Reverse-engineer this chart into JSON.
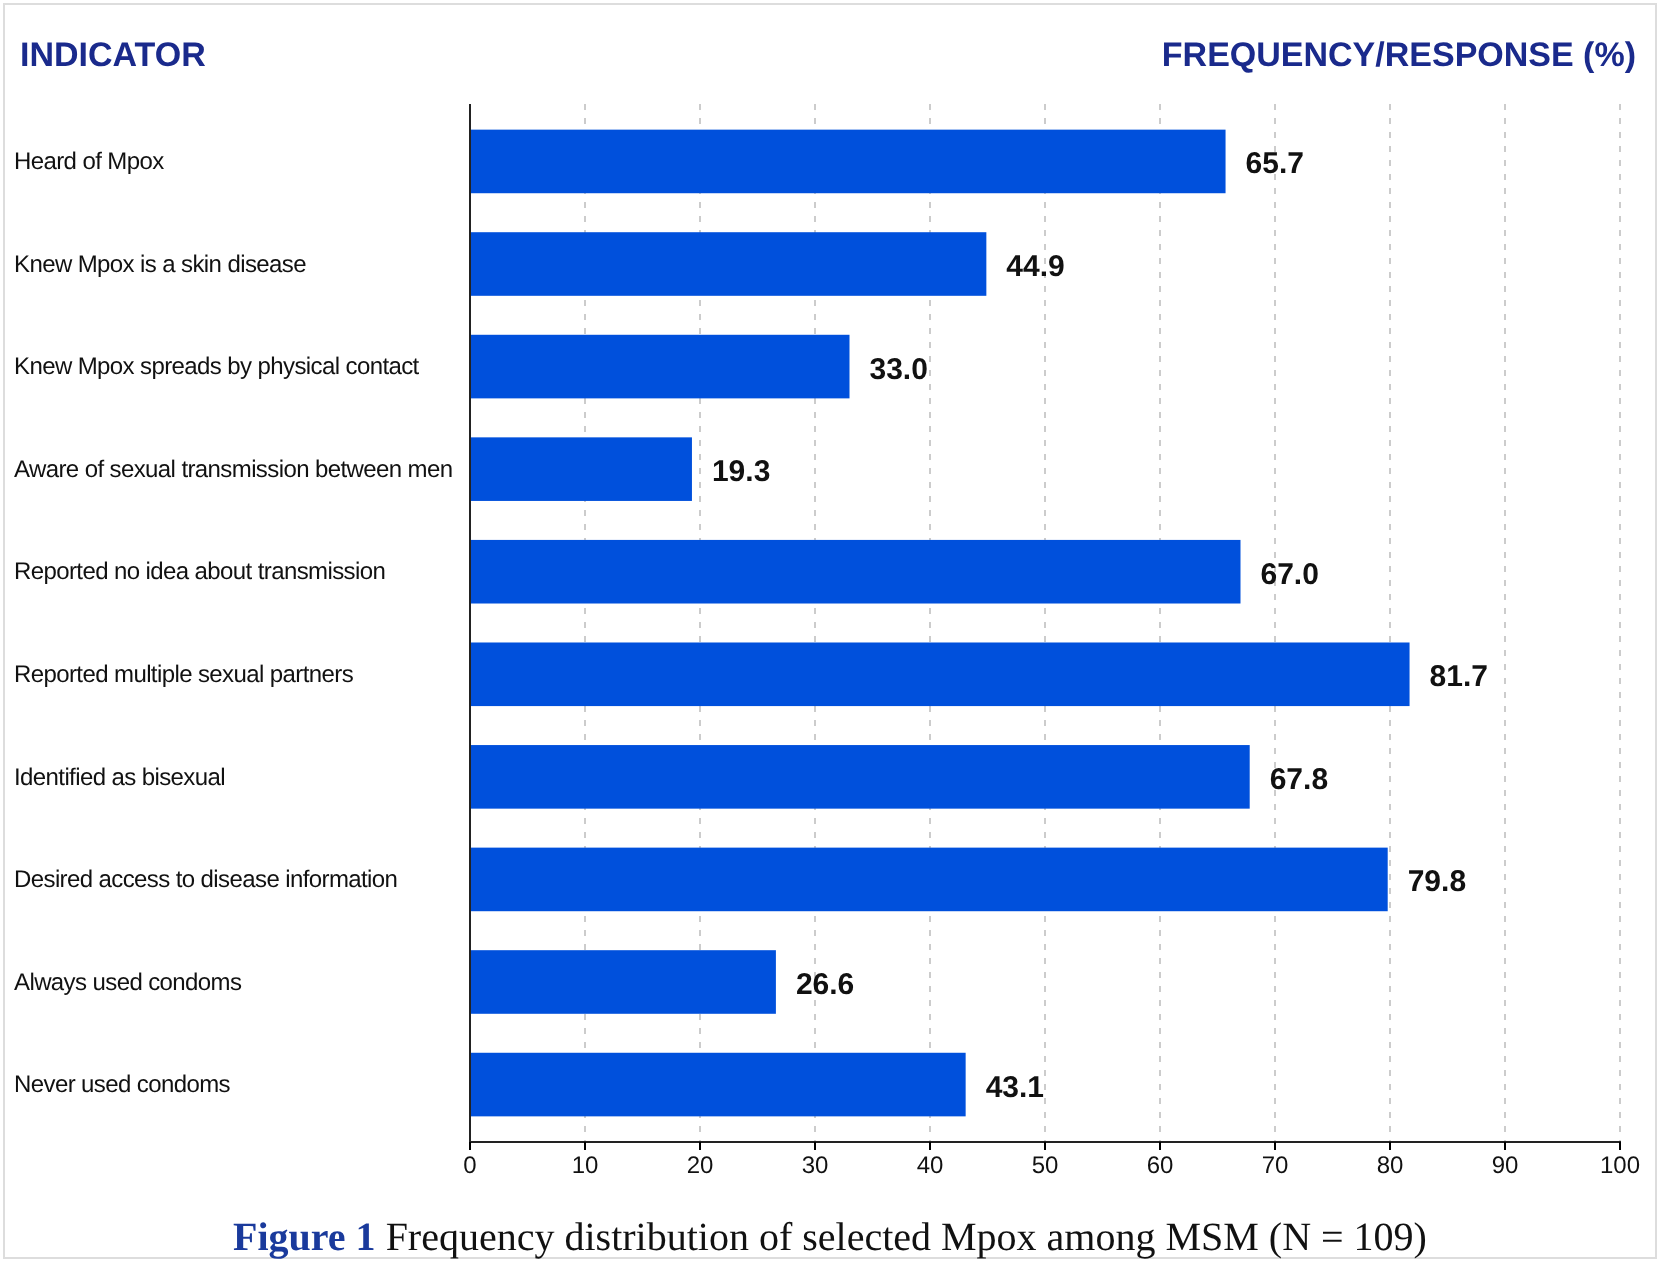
{
  "chart_data": {
    "type": "bar",
    "orientation": "horizontal",
    "ylabel": "INDICATOR",
    "xlabel": "FREQUENCY/RESPONSE (%)",
    "categories": [
      "Heard of Mpox",
      "Knew Mpox is a skin disease",
      "Knew Mpox spreads by physical contact",
      "Aware of sexual transmission between men",
      "Reported no idea about transmission",
      "Reported multiple sexual partners",
      "Identified as bisexual",
      "Desired access to disease information",
      "Always used condoms",
      "Never used condoms"
    ],
    "values": [
      65.7,
      44.9,
      33.0,
      19.3,
      67.0,
      81.7,
      67.8,
      79.8,
      26.6,
      43.1
    ],
    "value_labels": [
      "65.7",
      "44.9",
      "33.0",
      "19.3",
      "67.0",
      "81.7",
      "67.8",
      "79.8",
      "26.6",
      "43.1"
    ],
    "color": "#0050dc",
    "xlim": [
      0,
      100
    ],
    "xticks": [
      0,
      10,
      20,
      30,
      40,
      50,
      60,
      70,
      80,
      90,
      100
    ],
    "grid": "x",
    "annotations": [
      "Figure 1",
      "Frequency distribution of selected Mpox among MSM (N = 109)"
    ]
  }
}
